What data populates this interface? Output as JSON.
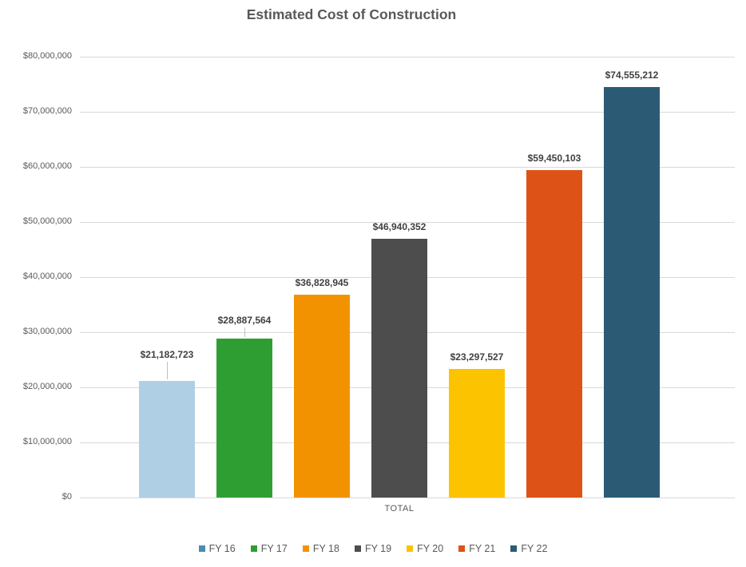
{
  "chart_data": {
    "type": "bar",
    "title": "Estimated Cost of Construction",
    "category": "TOTAL",
    "xlabel": "",
    "ylabel": "",
    "ylim": [
      0,
      80000000
    ],
    "grid": true,
    "legend_position": "bottom",
    "y_ticks": [
      {
        "value": 0,
        "label": "$0"
      },
      {
        "value": 10000000,
        "label": "$10,000,000"
      },
      {
        "value": 20000000,
        "label": "$20,000,000"
      },
      {
        "value": 30000000,
        "label": "$30,000,000"
      },
      {
        "value": 40000000,
        "label": "$40,000,000"
      },
      {
        "value": 50000000,
        "label": "$50,000,000"
      },
      {
        "value": 60000000,
        "label": "$60,000,000"
      },
      {
        "value": 70000000,
        "label": "$70,000,000"
      },
      {
        "value": 80000000,
        "label": "$80,000,000"
      }
    ],
    "series": [
      {
        "name": "FY 16",
        "value": 21182723,
        "label": "$21,182,723",
        "color": "#AFCFE4",
        "legend_color": "#4C8CB4",
        "label_offset": 26,
        "leader": true
      },
      {
        "name": "FY 17",
        "value": 28887564,
        "label": "$28,887,564",
        "color": "#2F9E32",
        "label_offset": 16,
        "leader": true
      },
      {
        "name": "FY 18",
        "value": 36828945,
        "label": "$36,828,945",
        "color": "#F39200",
        "label_offset": 8,
        "leader": false
      },
      {
        "name": "FY 19",
        "value": 46940352,
        "label": "$46,940,352",
        "color": "#4D4D4D",
        "label_offset": 8,
        "leader": false
      },
      {
        "name": "FY 20",
        "value": 23297527,
        "label": "$23,297,527",
        "color": "#FCC300",
        "label_offset": 8,
        "leader": false
      },
      {
        "name": "FY 21",
        "value": 59450103,
        "label": "$59,450,103",
        "color": "#DD5317",
        "label_offset": 8,
        "leader": false
      },
      {
        "name": "FY 22",
        "value": 74555212,
        "label": "$74,555,212",
        "color": "#2B5B74",
        "label_offset": 8,
        "leader": false
      }
    ]
  }
}
